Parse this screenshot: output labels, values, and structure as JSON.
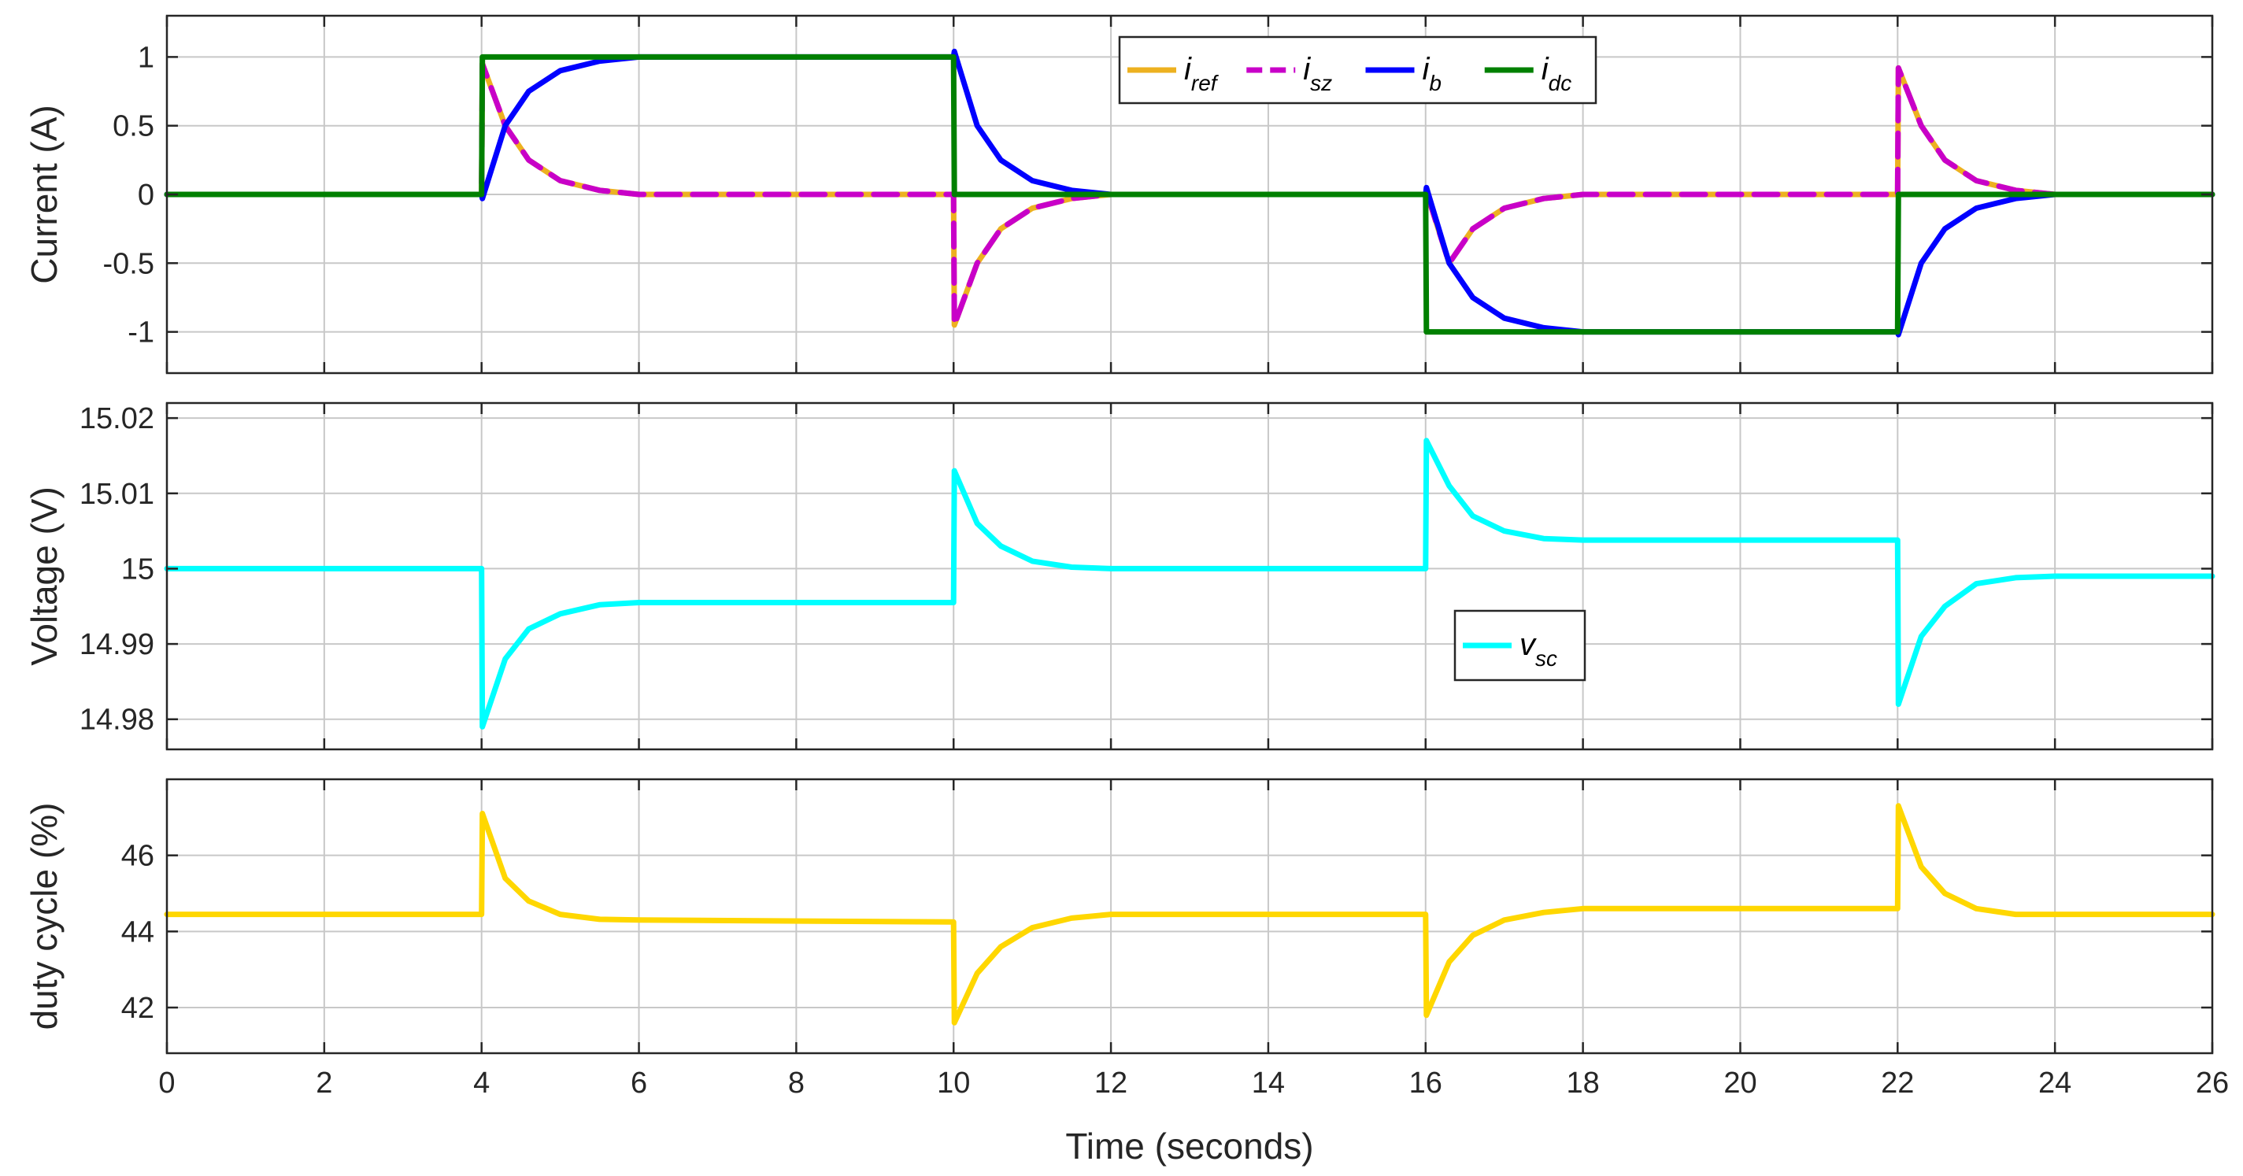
{
  "chart_data": [
    {
      "type": "line",
      "ylabel": "Current (A)",
      "xlim": [
        0,
        26
      ],
      "ylim": [
        -1.3,
        1.3
      ],
      "xticks": [
        0,
        2,
        4,
        6,
        8,
        10,
        12,
        14,
        16,
        18,
        20,
        22,
        24,
        26
      ],
      "yticks": [
        -1,
        -0.5,
        0,
        0.5,
        1
      ],
      "ytick_labels": [
        "-1",
        "-0.5",
        "0",
        "0.5",
        "1"
      ],
      "grid": true,
      "legend": {
        "placement": "top-center",
        "orientation": "horizontal"
      },
      "series": [
        {
          "name": "i",
          "sub": "ref",
          "color": "#EDB120",
          "dash": "solid",
          "x": [
            0,
            4,
            4.01,
            4.3,
            4.6,
            5.0,
            5.5,
            6.0,
            10,
            10.01,
            10.3,
            10.6,
            11.0,
            11.5,
            12.0,
            16,
            16.01,
            16.3,
            16.6,
            17.0,
            17.5,
            18.0,
            22,
            22.01,
            22.3,
            22.6,
            23.0,
            23.5,
            24.0,
            26
          ],
          "y": [
            0,
            0,
            0.95,
            0.5,
            0.25,
            0.1,
            0.03,
            0.0,
            0,
            -0.95,
            -0.5,
            -0.25,
            -0.1,
            -0.03,
            0.0,
            0,
            0.02,
            -0.5,
            -0.25,
            -0.1,
            -0.03,
            0.0,
            0,
            0.92,
            0.5,
            0.25,
            0.1,
            0.03,
            0.0,
            0
          ]
        },
        {
          "name": "i",
          "sub": "sz",
          "color": "#C800C8",
          "dash": "dashed",
          "x": [
            0,
            4,
            4.01,
            4.3,
            4.6,
            5.0,
            5.5,
            6.0,
            10,
            10.01,
            10.3,
            10.6,
            11.0,
            11.5,
            12.0,
            16,
            16.01,
            16.3,
            16.6,
            17.0,
            17.5,
            18.0,
            22,
            22.01,
            22.3,
            22.6,
            23.0,
            23.5,
            24.0,
            26
          ],
          "y": [
            0,
            0,
            0.95,
            0.5,
            0.25,
            0.1,
            0.03,
            0.0,
            0,
            -0.95,
            -0.5,
            -0.25,
            -0.1,
            -0.03,
            0.0,
            0,
            0.02,
            -0.5,
            -0.25,
            -0.1,
            -0.03,
            0.0,
            0,
            0.92,
            0.5,
            0.25,
            0.1,
            0.03,
            0.0,
            0
          ]
        },
        {
          "name": "i",
          "sub": "b",
          "color": "#0000FF",
          "dash": "solid",
          "x": [
            0,
            4,
            4.01,
            4.3,
            4.6,
            5.0,
            5.5,
            6.0,
            10,
            10.01,
            10.3,
            10.6,
            11.0,
            11.5,
            12.0,
            16,
            16.01,
            16.3,
            16.6,
            17.0,
            17.5,
            18.0,
            22,
            22.01,
            22.3,
            22.6,
            23.0,
            23.5,
            24.0,
            26
          ],
          "y": [
            0,
            0,
            -0.03,
            0.5,
            0.75,
            0.9,
            0.97,
            1.0,
            1.0,
            1.04,
            0.5,
            0.25,
            0.1,
            0.03,
            0.0,
            0,
            0.05,
            -0.5,
            -0.75,
            -0.9,
            -0.97,
            -1.0,
            -1.0,
            -1.02,
            -0.5,
            -0.25,
            -0.1,
            -0.03,
            0.0,
            0
          ]
        },
        {
          "name": "i",
          "sub": "dc",
          "color": "#008000",
          "dash": "solid",
          "x": [
            0,
            4,
            4.01,
            10,
            10.01,
            16,
            16.01,
            22,
            22.01,
            26
          ],
          "y": [
            0,
            0,
            1.0,
            1.0,
            0,
            0,
            -1.0,
            -1.0,
            0,
            0
          ]
        }
      ]
    },
    {
      "type": "line",
      "ylabel": "Voltage (V)",
      "xlim": [
        0,
        26
      ],
      "ylim": [
        14.976,
        15.022
      ],
      "xticks": [
        0,
        2,
        4,
        6,
        8,
        10,
        12,
        14,
        16,
        18,
        20,
        22,
        24,
        26
      ],
      "yticks": [
        14.98,
        14.99,
        15,
        15.01,
        15.02
      ],
      "ytick_labels": [
        "14.98",
        "14.99",
        "15",
        "15.01",
        "15.02"
      ],
      "grid": true,
      "legend": {
        "placement": "center-right",
        "orientation": "horizontal"
      },
      "series": [
        {
          "name": "v",
          "sub": "sc",
          "color": "#00FFFF",
          "dash": "solid",
          "x": [
            0,
            4,
            4.01,
            4.3,
            4.6,
            5.0,
            5.5,
            6.0,
            10,
            10.01,
            10.3,
            10.6,
            11.0,
            11.5,
            12.0,
            16,
            16.01,
            16.3,
            16.6,
            17.0,
            17.5,
            18.0,
            22,
            22.01,
            22.3,
            22.6,
            23.0,
            23.5,
            24.0,
            26
          ],
          "y": [
            15.0,
            15.0,
            14.979,
            14.988,
            14.992,
            14.994,
            14.9952,
            14.9955,
            14.9955,
            15.013,
            15.006,
            15.003,
            15.001,
            15.0002,
            15.0,
            15.0,
            15.017,
            15.011,
            15.007,
            15.005,
            15.004,
            15.0038,
            15.0038,
            14.982,
            14.991,
            14.995,
            14.998,
            14.9988,
            14.999,
            14.999
          ]
        }
      ]
    },
    {
      "type": "line",
      "ylabel": "duty cycle (%)",
      "xlabel": "Time (seconds)",
      "xlim": [
        0,
        26
      ],
      "ylim": [
        40.8,
        48.0
      ],
      "xticks": [
        0,
        2,
        4,
        6,
        8,
        10,
        12,
        14,
        16,
        18,
        20,
        22,
        24,
        26
      ],
      "xtick_labels": [
        "0",
        "2",
        "4",
        "6",
        "8",
        "10",
        "12",
        "14",
        "16",
        "18",
        "20",
        "22",
        "24",
        "26"
      ],
      "yticks": [
        42,
        44,
        46
      ],
      "ytick_labels": [
        "42",
        "44",
        "46"
      ],
      "grid": true,
      "series": [
        {
          "name": "",
          "color": "#FFD700",
          "dash": "solid",
          "x": [
            0,
            4,
            4.01,
            4.3,
            4.6,
            5.0,
            5.5,
            6.0,
            10,
            10.01,
            10.3,
            10.6,
            11.0,
            11.5,
            12.0,
            16,
            16.01,
            16.3,
            16.6,
            17.0,
            17.5,
            18.0,
            22,
            22.01,
            22.3,
            22.6,
            23.0,
            23.5,
            24.0,
            26
          ],
          "y": [
            44.45,
            44.45,
            47.1,
            45.4,
            44.8,
            44.45,
            44.32,
            44.3,
            44.25,
            41.6,
            42.9,
            43.6,
            44.1,
            44.35,
            44.45,
            44.45,
            41.8,
            43.2,
            43.9,
            44.3,
            44.5,
            44.6,
            44.6,
            47.3,
            45.7,
            45.0,
            44.6,
            44.45,
            44.45,
            44.45
          ]
        }
      ]
    }
  ]
}
